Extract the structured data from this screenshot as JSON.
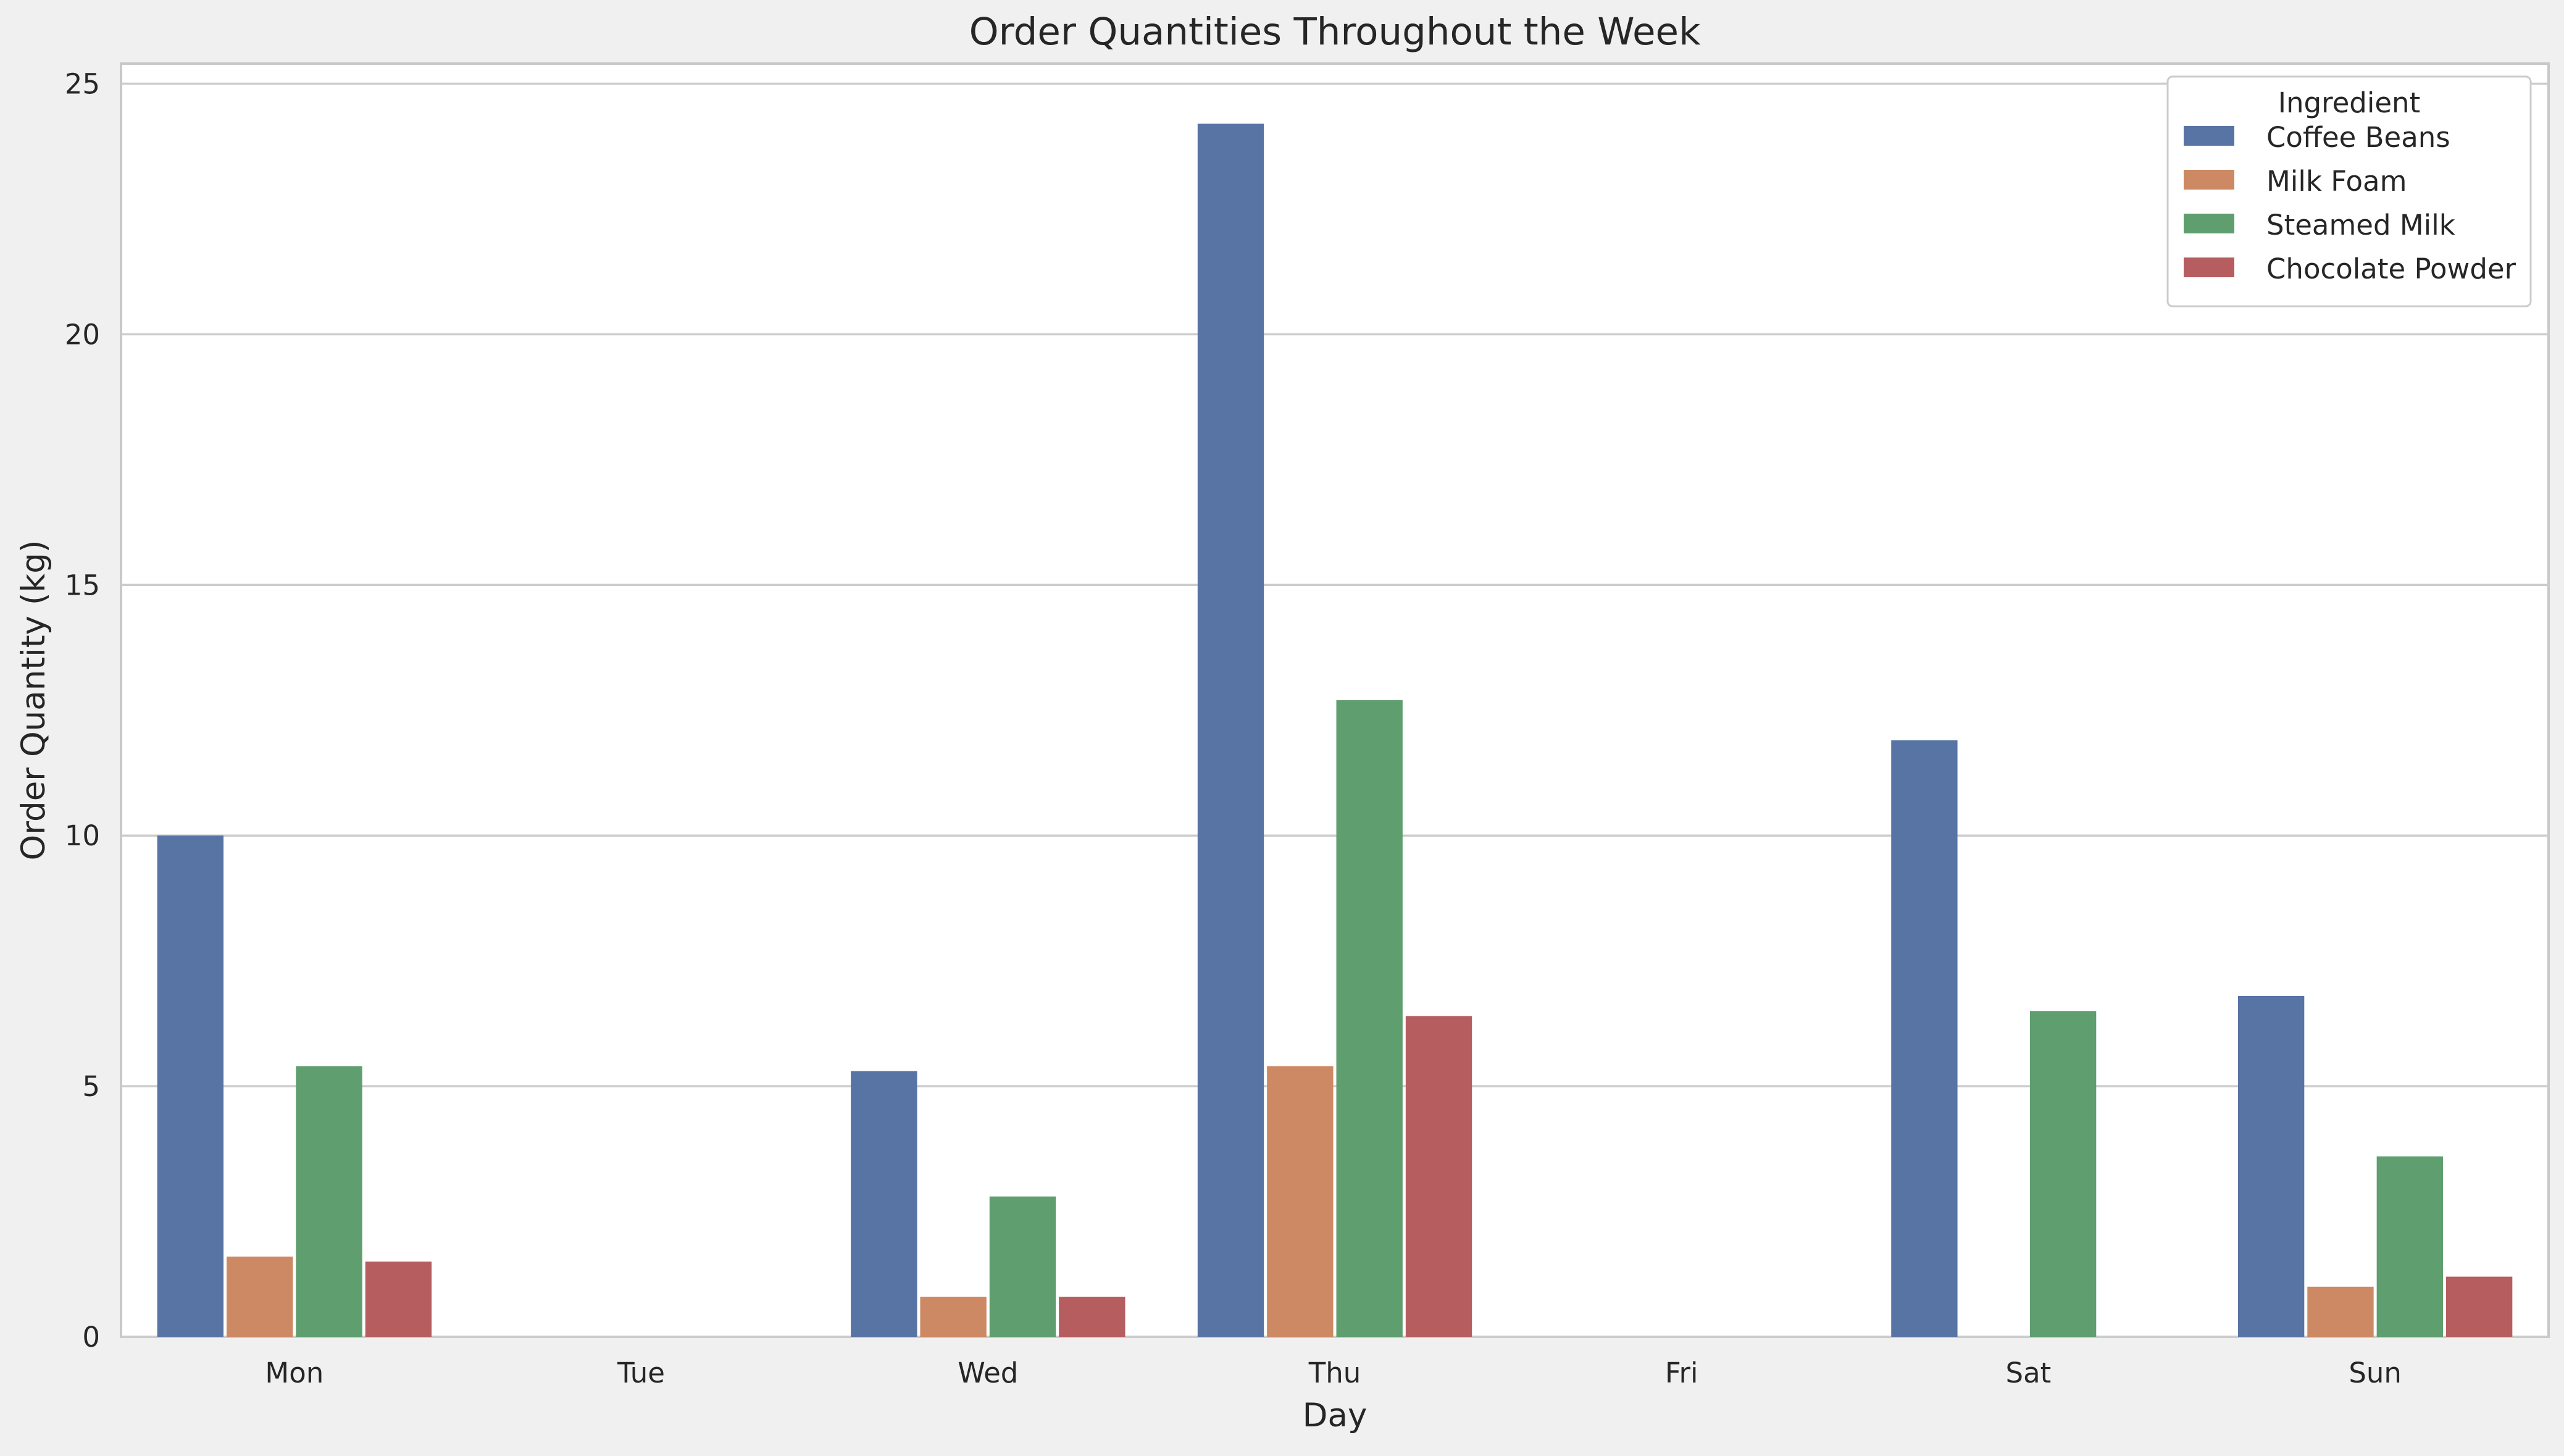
{
  "chart_data": {
    "type": "bar",
    "title": "Order Quantities Throughout the Week",
    "xlabel": "Day",
    "ylabel": "Order Quantity (kg)",
    "categories": [
      "Mon",
      "Tue",
      "Wed",
      "Thu",
      "Fri",
      "Sat",
      "Sun"
    ],
    "ylim": [
      0,
      25.4
    ],
    "yticks": [
      0,
      5,
      10,
      15,
      20,
      25
    ],
    "grid": "y",
    "legend": {
      "title": "Ingredient",
      "position": "top-right"
    },
    "series": [
      {
        "name": "Coffee Beans",
        "color": "#5874a5",
        "values": [
          10.0,
          0,
          5.3,
          24.2,
          0,
          11.9,
          6.8
        ]
      },
      {
        "name": "Milk Foam",
        "color": "#cc8963",
        "values": [
          1.6,
          0,
          0.8,
          5.4,
          0,
          0,
          1.0
        ]
      },
      {
        "name": "Steamed Milk",
        "color": "#5f9e6e",
        "values": [
          5.4,
          0,
          2.8,
          12.7,
          0,
          6.5,
          3.6
        ]
      },
      {
        "name": "Chocolate Powder",
        "color": "#b65d60",
        "values": [
          1.5,
          0,
          0.8,
          6.4,
          0,
          0,
          1.2
        ]
      }
    ]
  }
}
